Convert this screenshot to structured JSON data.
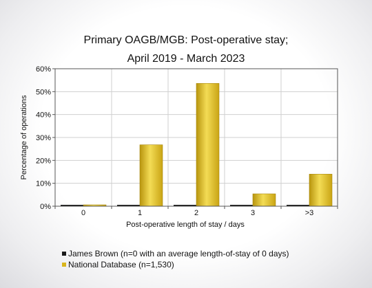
{
  "chart_data": {
    "type": "bar",
    "title_lines": [
      "Primary OAGB/MGB: Post-operative stay;",
      "April 2019 - March 2023"
    ],
    "xlabel": "Post-operative length of stay / days",
    "ylabel": "Percentage of operations",
    "categories": [
      "0",
      "1",
      "2",
      "3",
      ">3"
    ],
    "ylim": [
      0,
      60
    ],
    "y_ticks": [
      0,
      10,
      20,
      30,
      40,
      50,
      60
    ],
    "y_tick_labels": [
      "0%",
      "10%",
      "20%",
      "30%",
      "40%",
      "50%",
      "60%"
    ],
    "grid": true,
    "legend_placement": "bottom-left",
    "series": [
      {
        "name": "James Brown (n=0 with an average length-of-stay of 0 days)",
        "color": "#1a1a1a",
        "values": [
          0,
          0,
          0,
          0,
          0
        ]
      },
      {
        "name": "National Database (n=1,530)",
        "color": "#d9b51c",
        "values": [
          0.3,
          26.8,
          53.6,
          5.4,
          14.0
        ]
      }
    ]
  }
}
